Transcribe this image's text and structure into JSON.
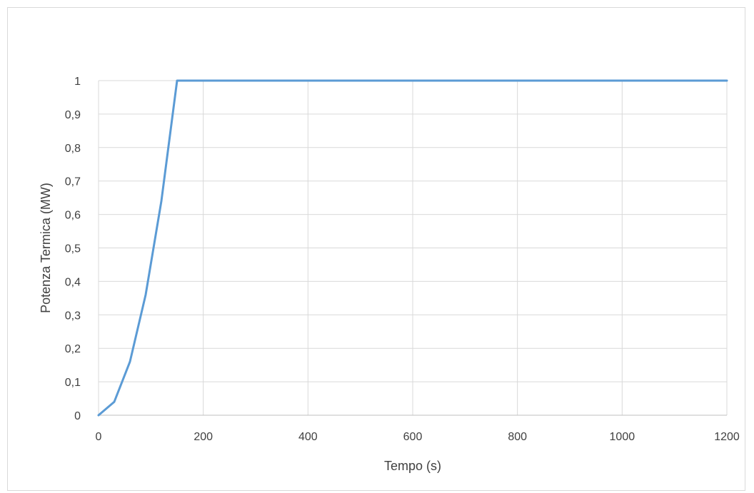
{
  "chart_data": {
    "type": "line",
    "title": "",
    "xlabel": "Tempo (s)",
    "ylabel": "Potenza Termica (MW)",
    "xlim": [
      0,
      1200
    ],
    "ylim": [
      0,
      1
    ],
    "x_ticks": [
      0,
      200,
      400,
      600,
      800,
      1000,
      1200
    ],
    "x_tick_labels": [
      "0",
      "200",
      "400",
      "600",
      "800",
      "1000",
      "1200"
    ],
    "y_ticks": [
      0,
      0.1,
      0.2,
      0.3,
      0.4,
      0.5,
      0.6,
      0.7,
      0.8,
      0.9,
      1
    ],
    "y_tick_labels": [
      "0",
      "0,1",
      "0,2",
      "0,3",
      "0,4",
      "0,5",
      "0,6",
      "0,7",
      "0,8",
      "0,9",
      "1"
    ],
    "grid": true,
    "legend": "none",
    "series": [
      {
        "color": "#5b9bd5",
        "x": [
          0,
          30,
          60,
          90,
          120,
          150,
          1200
        ],
        "y": [
          0,
          0.04,
          0.16,
          0.36,
          0.64,
          1.0,
          1.0
        ]
      }
    ]
  }
}
